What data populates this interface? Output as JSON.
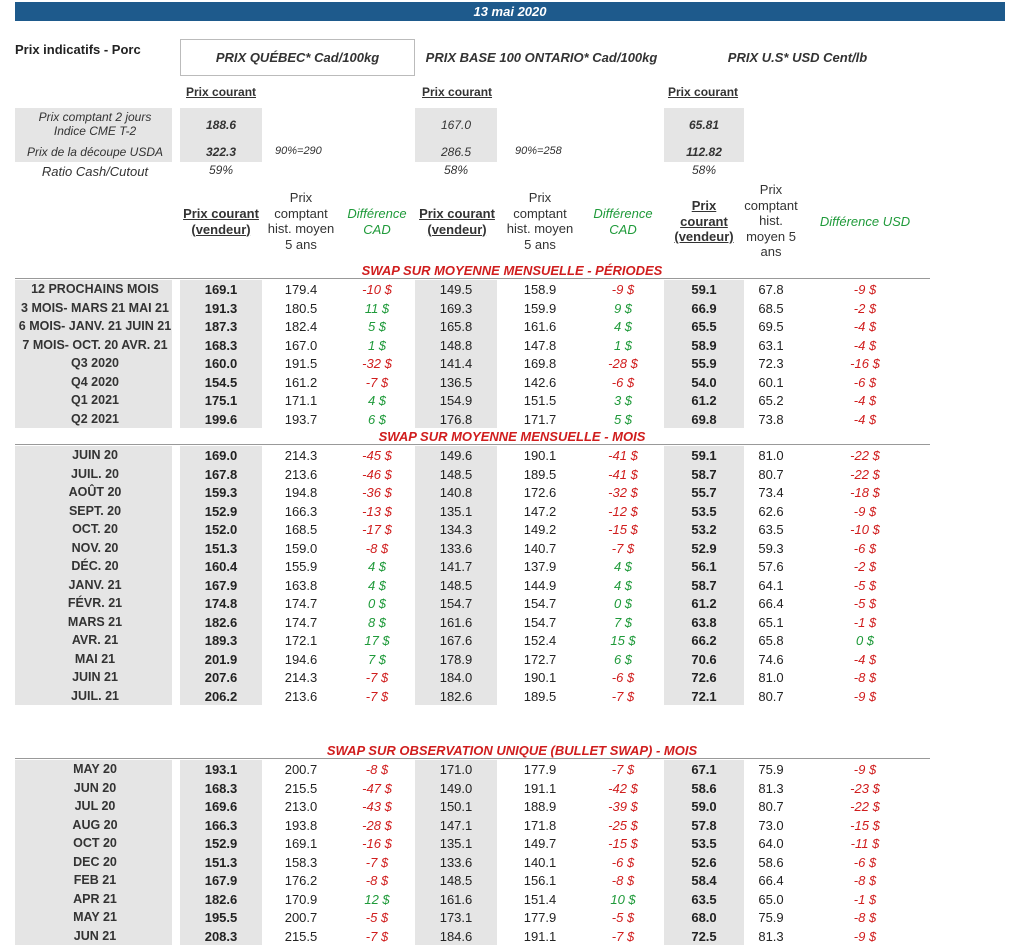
{
  "date": "13 mai 2020",
  "header": {
    "title": "Prix indicatifs - Porc",
    "quebec": "PRIX QUÉBEC* Cad/100kg",
    "ontario": "PRIX BASE 100 ONTARIO* Cad/100kg",
    "us": "PRIX U.S* USD Cent/lb",
    "prix_courant": "Prix courant"
  },
  "summary": {
    "rows": [
      {
        "label1": "Prix comptant 2 jours",
        "label2": "Indice CME T-2",
        "qc": "188.6",
        "on": "167.0",
        "us": "65.81"
      },
      {
        "label1": "Prix de la découpe USDA",
        "label2": "",
        "qc": "322.3",
        "qc_note": "90%=290",
        "on": "286.5",
        "on_note": "90%=258",
        "us": "112.82"
      },
      {
        "label1": "Ratio Cash/Cutout",
        "label2": "",
        "qc": "59%",
        "on": "58%",
        "us": "58%"
      }
    ]
  },
  "columns": {
    "vendeur_qc": [
      "Prix courant",
      "(vendeur)"
    ],
    "hist_qc": [
      "Prix",
      "comptant",
      "hist. moyen",
      "5 ans"
    ],
    "diff_cad": [
      "Différence",
      "CAD"
    ],
    "vendeur_on": [
      "Prix courant",
      "(vendeur)"
    ],
    "hist_on": [
      "Prix",
      "comptant",
      "hist. moyen",
      "5 ans"
    ],
    "diff_cad2": [
      "Différence",
      "CAD"
    ],
    "vendeur_us": [
      "Prix",
      "courant",
      "(vendeur)"
    ],
    "hist_us": [
      "Prix",
      "comptant",
      "hist.",
      "moyen 5",
      "ans"
    ],
    "diff_usd": [
      "Différence USD"
    ]
  },
  "sections": [
    {
      "title": "SWAP SUR MOYENNE MENSUELLE - PÉRIODES",
      "rows": [
        [
          "12 PROCHAINS MOIS",
          "169.1",
          "179.4",
          "-10 $",
          "149.5",
          "158.9",
          "-9 $",
          "59.1",
          "67.8",
          "-9 $"
        ],
        [
          "3 MOIS- MARS 21 MAI 21",
          "191.3",
          "180.5",
          "11 $",
          "169.3",
          "159.9",
          "9 $",
          "66.9",
          "68.5",
          "-2 $"
        ],
        [
          "6 MOIS- JANV. 21 JUIN 21",
          "187.3",
          "182.4",
          "5 $",
          "165.8",
          "161.6",
          "4 $",
          "65.5",
          "69.5",
          "-4 $"
        ],
        [
          "7 MOIS- OCT. 20 AVR. 21",
          "168.3",
          "167.0",
          "1 $",
          "148.8",
          "147.8",
          "1 $",
          "58.9",
          "63.1",
          "-4 $"
        ],
        [
          "Q3 2020",
          "160.0",
          "191.5",
          "-32 $",
          "141.4",
          "169.8",
          "-28 $",
          "55.9",
          "72.3",
          "-16 $"
        ],
        [
          "Q4 2020",
          "154.5",
          "161.2",
          "-7 $",
          "136.5",
          "142.6",
          "-6 $",
          "54.0",
          "60.1",
          "-6 $"
        ],
        [
          "Q1 2021",
          "175.1",
          "171.1",
          "4 $",
          "154.9",
          "151.5",
          "3 $",
          "61.2",
          "65.2",
          "-4 $"
        ],
        [
          "Q2 2021",
          "199.6",
          "193.7",
          "6 $",
          "176.8",
          "171.7",
          "5 $",
          "69.8",
          "73.8",
          "-4 $"
        ]
      ]
    },
    {
      "title": "SWAP SUR MOYENNE MENSUELLE - MOIS",
      "rows": [
        [
          "JUIN 20",
          "169.0",
          "214.3",
          "-45 $",
          "149.6",
          "190.1",
          "-41 $",
          "59.1",
          "81.0",
          "-22 $"
        ],
        [
          "JUIL. 20",
          "167.8",
          "213.6",
          "-46 $",
          "148.5",
          "189.5",
          "-41 $",
          "58.7",
          "80.7",
          "-22 $"
        ],
        [
          "AOÛT 20",
          "159.3",
          "194.8",
          "-36 $",
          "140.8",
          "172.6",
          "-32 $",
          "55.7",
          "73.4",
          "-18 $"
        ],
        [
          "SEPT. 20",
          "152.9",
          "166.3",
          "-13 $",
          "135.1",
          "147.2",
          "-12 $",
          "53.5",
          "62.6",
          "-9 $"
        ],
        [
          "OCT. 20",
          "152.0",
          "168.5",
          "-17 $",
          "134.3",
          "149.2",
          "-15 $",
          "53.2",
          "63.5",
          "-10 $"
        ],
        [
          "NOV. 20",
          "151.3",
          "159.0",
          "-8 $",
          "133.6",
          "140.7",
          "-7 $",
          "52.9",
          "59.3",
          "-6 $"
        ],
        [
          "DÉC. 20",
          "160.4",
          "155.9",
          "4 $",
          "141.7",
          "137.9",
          "4 $",
          "56.1",
          "57.6",
          "-2 $"
        ],
        [
          "JANV. 21",
          "167.9",
          "163.8",
          "4 $",
          "148.5",
          "144.9",
          "4 $",
          "58.7",
          "64.1",
          "-5 $"
        ],
        [
          "FÉVR. 21",
          "174.8",
          "174.7",
          "0 $",
          "154.7",
          "154.7",
          "0 $",
          "61.2",
          "66.4",
          "-5 $"
        ],
        [
          "MARS 21",
          "182.6",
          "174.7",
          "8 $",
          "161.6",
          "154.7",
          "7 $",
          "63.8",
          "65.1",
          "-1 $"
        ],
        [
          "AVR. 21",
          "189.3",
          "172.1",
          "17 $",
          "167.6",
          "152.4",
          "15 $",
          "66.2",
          "65.8",
          "0 $"
        ],
        [
          "MAI 21",
          "201.9",
          "194.6",
          "7 $",
          "178.9",
          "172.7",
          "6 $",
          "70.6",
          "74.6",
          "-4 $"
        ],
        [
          "JUIN 21",
          "207.6",
          "214.3",
          "-7 $",
          "184.0",
          "190.1",
          "-6 $",
          "72.6",
          "81.0",
          "-8 $"
        ],
        [
          "JUIL. 21",
          "206.2",
          "213.6",
          "-7 $",
          "182.6",
          "189.5",
          "-7 $",
          "72.1",
          "80.7",
          "-9 $"
        ]
      ]
    },
    {
      "title": "SWAP SUR OBSERVATION UNIQUE (BULLET SWAP) - MOIS",
      "rows": [
        [
          "MAY 20",
          "193.1",
          "200.7",
          "-8 $",
          "171.0",
          "177.9",
          "-7 $",
          "67.1",
          "75.9",
          "-9 $"
        ],
        [
          "JUN 20",
          "168.3",
          "215.5",
          "-47 $",
          "149.0",
          "191.1",
          "-42 $",
          "58.6",
          "81.3",
          "-23 $"
        ],
        [
          "JUL 20",
          "169.6",
          "213.0",
          "-43 $",
          "150.1",
          "188.9",
          "-39 $",
          "59.0",
          "80.7",
          "-22 $"
        ],
        [
          "AUG 20",
          "166.3",
          "193.8",
          "-28 $",
          "147.1",
          "171.8",
          "-25 $",
          "57.8",
          "73.0",
          "-15 $"
        ],
        [
          "OCT 20",
          "152.9",
          "169.1",
          "-16 $",
          "135.1",
          "149.7",
          "-15 $",
          "53.5",
          "64.0",
          "-11 $"
        ],
        [
          "DEC 20",
          "151.3",
          "158.3",
          "-7 $",
          "133.6",
          "140.1",
          "-6 $",
          "52.6",
          "58.6",
          "-6 $"
        ],
        [
          "FEB 21",
          "167.9",
          "176.2",
          "-8 $",
          "148.5",
          "156.1",
          "-8 $",
          "58.4",
          "66.4",
          "-8 $"
        ],
        [
          "APR 21",
          "182.6",
          "170.9",
          "12 $",
          "161.6",
          "151.4",
          "10 $",
          "63.5",
          "65.0",
          "-1 $"
        ],
        [
          "MAY 21",
          "195.5",
          "200.7",
          "-5 $",
          "173.1",
          "177.9",
          "-5 $",
          "68.0",
          "75.9",
          "-8 $"
        ],
        [
          "JUN 21",
          "208.3",
          "215.5",
          "-7 $",
          "184.6",
          "191.1",
          "-7 $",
          "72.5",
          "81.3",
          "-9 $"
        ]
      ]
    }
  ],
  "colors": {
    "header_bar": "#1e5a8c",
    "negative": "#d01d1d",
    "positive": "#1f9a3a",
    "gray": "#e5e5e5"
  }
}
